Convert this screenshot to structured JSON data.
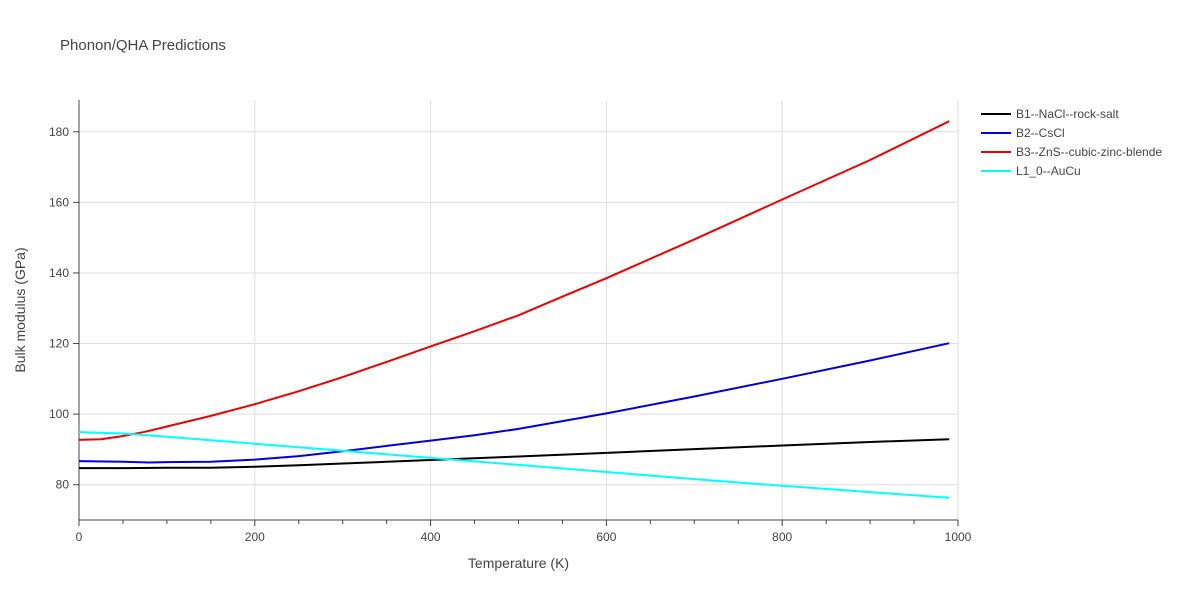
{
  "chart_data": {
    "type": "line",
    "title": "Phonon/QHA Predictions",
    "xlabel": "Temperature (K)",
    "ylabel": "Bulk modulus (GPa)",
    "xlim": [
      0,
      1000
    ],
    "ylim": [
      70,
      189
    ],
    "x_ticks": [
      0,
      200,
      400,
      600,
      800,
      1000
    ],
    "x_minor_ticks": [
      50,
      100,
      150,
      250,
      300,
      350,
      450,
      500,
      550,
      650,
      700,
      750,
      850,
      900,
      950
    ],
    "y_ticks": [
      80,
      100,
      120,
      140,
      160,
      180
    ],
    "grid": true,
    "legend_position": "top-right",
    "series": [
      {
        "name": "B1--NaCl--rock-salt",
        "color": "#000000",
        "x": [
          0,
          50,
          100,
          150,
          200,
          250,
          300,
          350,
          400,
          450,
          500,
          600,
          700,
          800,
          900,
          990
        ],
        "y": [
          84.7,
          84.7,
          84.8,
          84.8,
          85.1,
          85.5,
          86.0,
          86.5,
          87.0,
          87.5,
          88.0,
          89.0,
          90.1,
          91.1,
          92.1,
          92.9
        ]
      },
      {
        "name": "B2--CsCl",
        "color": "#0000dd",
        "x": [
          0,
          50,
          80,
          100,
          150,
          200,
          250,
          300,
          350,
          400,
          450,
          500,
          600,
          700,
          800,
          900,
          990
        ],
        "y": [
          86.7,
          86.5,
          86.3,
          86.4,
          86.5,
          87.1,
          88.1,
          89.5,
          91.0,
          92.5,
          94.0,
          95.8,
          100.2,
          105.0,
          110.0,
          115.2,
          120.1
        ]
      },
      {
        "name": "B3--ZnS--cubic-zinc-blende",
        "color": "#ee0000",
        "x": [
          0,
          25,
          50,
          75,
          100,
          150,
          200,
          250,
          300,
          350,
          400,
          450,
          500,
          550,
          600,
          700,
          800,
          900,
          990
        ],
        "y": [
          92.7,
          92.9,
          93.8,
          95.0,
          96.5,
          99.5,
          102.8,
          106.5,
          110.5,
          114.8,
          119.2,
          123.5,
          128.0,
          133.3,
          138.5,
          149.5,
          160.8,
          172.0,
          183.0
        ]
      },
      {
        "name": "L1_0--AuCu",
        "color": "#00ffff",
        "x": [
          0,
          50,
          100,
          200,
          300,
          400,
          500,
          600,
          700,
          800,
          900,
          990
        ],
        "y": [
          94.9,
          94.5,
          93.6,
          91.6,
          89.6,
          87.6,
          85.6,
          83.6,
          81.6,
          79.7,
          77.9,
          76.3
        ]
      }
    ]
  }
}
